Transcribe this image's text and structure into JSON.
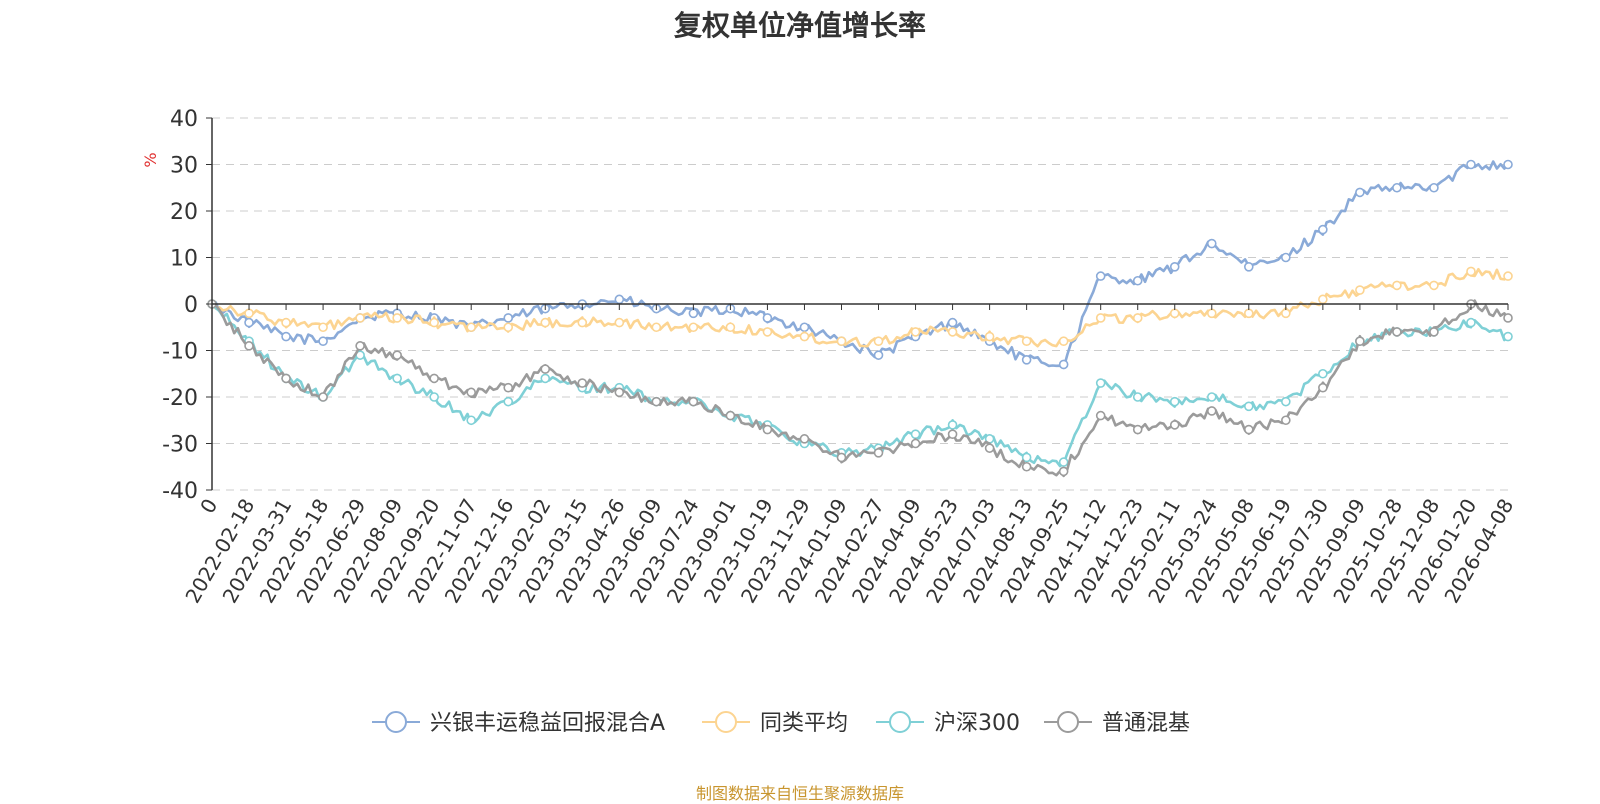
{
  "chart_data": {
    "type": "line",
    "title": "复权单位净值增长率",
    "ylabel": "%",
    "ylim": [
      -40,
      40
    ],
    "yticks": [
      -40,
      -30,
      -20,
      -10,
      0,
      10,
      20,
      30,
      40
    ],
    "grid": true,
    "legend_position": "bottom",
    "x": [
      "0",
      "2022-02-18",
      "2022-03-31",
      "2022-05-18",
      "2022-06-29",
      "2022-08-09",
      "2022-09-20",
      "2022-11-07",
      "2022-12-16",
      "2023-02-02",
      "2023-03-15",
      "2023-04-26",
      "2023-06-09",
      "2023-07-24",
      "2023-09-01",
      "2023-10-19",
      "2023-11-29",
      "2024-01-09",
      "2024-02-27",
      "2024-04-09",
      "2024-05-23",
      "2024-07-03",
      "2024-08-13",
      "2024-09-25",
      "2024-11-12",
      "2024-12-23",
      "2025-02-11",
      "2025-03-24",
      "2025-05-08",
      "2025-06-19",
      "2025-07-30",
      "2025-09-09",
      "2025-10-28",
      "2025-12-08",
      "2026-01-20",
      "2026-04-08"
    ],
    "series": [
      {
        "name": "兴银丰运稳益回报混合A",
        "color": "#8aaad8",
        "values": [
          0,
          -4,
          -7,
          -8,
          -3,
          -2,
          -3,
          -5,
          -3,
          -1,
          0,
          1,
          -1,
          -2,
          -1,
          -3,
          -5,
          -8,
          -11,
          -7,
          -4,
          -8,
          -12,
          -13,
          6,
          5,
          8,
          13,
          8,
          10,
          16,
          24,
          25,
          25,
          30,
          30
        ]
      },
      {
        "name": "同类平均",
        "color": "#fcd491",
        "values": [
          0,
          -2,
          -4,
          -5,
          -3,
          -3,
          -4,
          -5,
          -5,
          -4,
          -4,
          -4,
          -5,
          -5,
          -5,
          -6,
          -7,
          -8,
          -8,
          -6,
          -6,
          -7,
          -8,
          -8,
          -3,
          -3,
          -2,
          -2,
          -2,
          -2,
          1,
          3,
          4,
          4,
          7,
          6
        ]
      },
      {
        "name": "沪深300",
        "color": "#7fd0d6",
        "values": [
          0,
          -8,
          -16,
          -20,
          -11,
          -16,
          -20,
          -25,
          -21,
          -16,
          -18,
          -18,
          -21,
          -21,
          -24,
          -26,
          -30,
          -32,
          -31,
          -28,
          -26,
          -29,
          -33,
          -34,
          -17,
          -20,
          -21,
          -20,
          -22,
          -21,
          -15,
          -8,
          -6,
          -6,
          -4,
          -7
        ]
      },
      {
        "name": "普通混基",
        "color": "#9b9b9b",
        "values": [
          0,
          -9,
          -16,
          -20,
          -9,
          -11,
          -16,
          -19,
          -18,
          -14,
          -17,
          -19,
          -21,
          -21,
          -24,
          -27,
          -29,
          -33,
          -32,
          -30,
          -28,
          -31,
          -35,
          -36,
          -24,
          -27,
          -26,
          -23,
          -27,
          -25,
          -18,
          -8,
          -6,
          -6,
          0,
          -3
        ]
      }
    ]
  },
  "source_note": "制图数据来自恒生聚源数据库"
}
